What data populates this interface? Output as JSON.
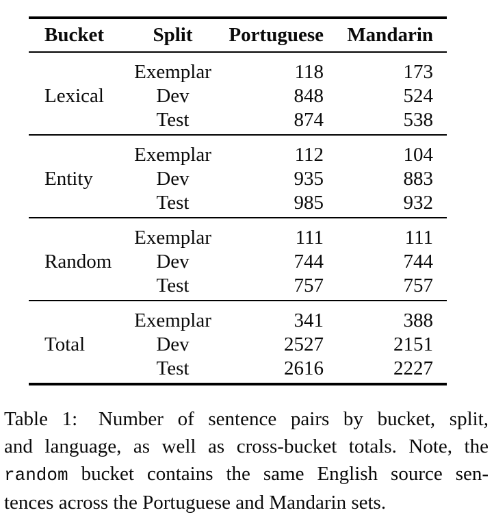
{
  "colors": {
    "background": "#ffffff",
    "text": "#0a0a0a",
    "rule": "#000000"
  },
  "table": {
    "headers": {
      "bucket": "Bucket",
      "split": "Split",
      "portuguese": "Portuguese",
      "mandarin": "Mandarin"
    },
    "groups": [
      {
        "bucket": "Lexical",
        "rows": [
          {
            "split": "Exemplar",
            "portuguese": "118",
            "mandarin": "173"
          },
          {
            "split": "Dev",
            "portuguese": "848",
            "mandarin": "524"
          },
          {
            "split": "Test",
            "portuguese": "874",
            "mandarin": "538"
          }
        ]
      },
      {
        "bucket": "Entity",
        "rows": [
          {
            "split": "Exemplar",
            "portuguese": "112",
            "mandarin": "104"
          },
          {
            "split": "Dev",
            "portuguese": "935",
            "mandarin": "883"
          },
          {
            "split": "Test",
            "portuguese": "985",
            "mandarin": "932"
          }
        ]
      },
      {
        "bucket": "Random",
        "rows": [
          {
            "split": "Exemplar",
            "portuguese": "111",
            "mandarin": "111"
          },
          {
            "split": "Dev",
            "portuguese": "744",
            "mandarin": "744"
          },
          {
            "split": "Test",
            "portuguese": "757",
            "mandarin": "757"
          }
        ]
      },
      {
        "bucket": "Total",
        "rows": [
          {
            "split": "Exemplar",
            "portuguese": "341",
            "mandarin": "388"
          },
          {
            "split": "Dev",
            "portuguese": "2527",
            "mandarin": "2151"
          },
          {
            "split": "Test",
            "portuguese": "2616",
            "mandarin": "2227"
          }
        ]
      }
    ]
  },
  "caption": {
    "line1_label": "Table 1:",
    "line1_rest": "Number of sentence pairs by bucket, split,",
    "line2": "and language, as well as cross-bucket totals. Note, the",
    "line3_mono": "random",
    "line3_rest": "bucket contains the same English source sen-",
    "line4": "tences across the Portuguese and Mandarin sets."
  }
}
